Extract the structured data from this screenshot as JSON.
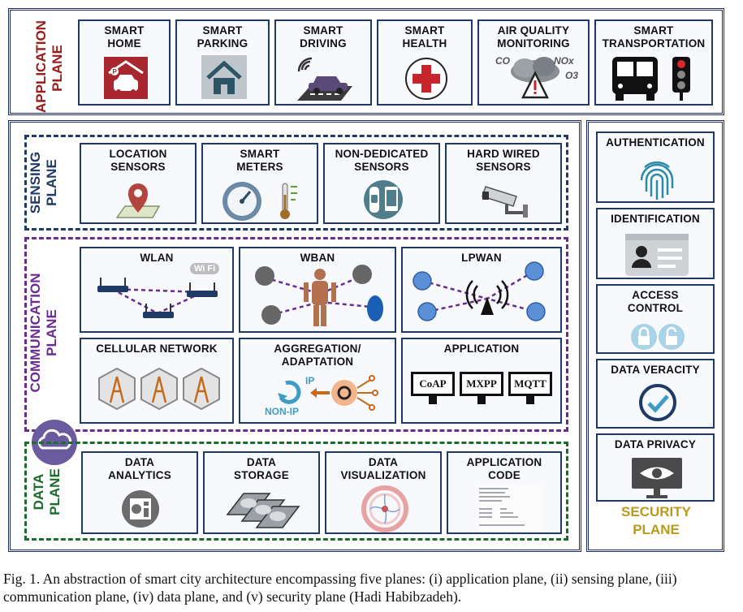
{
  "application_plane": {
    "title": "APPLICATION\nPLANE",
    "items": [
      {
        "label": "SMART\nHOME",
        "icon": "smart-home-icon"
      },
      {
        "label": "SMART\nPARKING",
        "icon": "house-icon"
      },
      {
        "label": "SMART\nDRIVING",
        "icon": "connected-car-icon"
      },
      {
        "label": "SMART\nHEALTH",
        "icon": "red-cross-icon"
      },
      {
        "label": "AIR QUALITY\nMONITORING",
        "icon": "pollution-cloud-icon",
        "gas_labels": [
          "CO",
          "NOx",
          "O3"
        ]
      },
      {
        "label": "SMART\nTRANSPORTATION",
        "icon": "bus-traffic-light-icon"
      }
    ]
  },
  "sensing_plane": {
    "title": "SENSING\nPLANE",
    "items": [
      {
        "label": "LOCATION\nSENSORS",
        "icon": "map-pin-icon"
      },
      {
        "label": "SMART\nMETERS",
        "icon": "gauge-thermometer-icon"
      },
      {
        "label": "NON-DEDICATED\nSENSORS",
        "icon": "wearable-phone-icon"
      },
      {
        "label": "HARD WIRED\nSENSORS",
        "icon": "cctv-camera-icon"
      }
    ]
  },
  "communication_plane": {
    "title": "COMMUNICATION\nPLANE",
    "items": [
      {
        "label": "WLAN",
        "icon": "wifi-router-network-icon",
        "badge": "Wi Fi"
      },
      {
        "label": "WBAN",
        "icon": "body-network-icon"
      },
      {
        "label": "LPWAN",
        "icon": "antenna-network-icon"
      },
      {
        "label": "CELLULAR NETWORK",
        "icon": "cell-tower-icon"
      },
      {
        "label": "AGGREGATION/\nADAPTATION",
        "icon": "gear-adapter-icon",
        "ip_label": "IP",
        "nonip_label": "NON-IP"
      },
      {
        "label": "APPLICATION",
        "icon": "protocol-monitors-icon",
        "protocols": [
          "CoAP",
          "MXPP",
          "MQTT"
        ]
      }
    ]
  },
  "data_plane": {
    "title": "DATA\nPLANE",
    "items": [
      {
        "label": "DATA\nANALYTICS",
        "icon": "analytics-icon"
      },
      {
        "label": "DATA\nSTORAGE",
        "icon": "hard-drives-icon"
      },
      {
        "label": "DATA\nVISUALIZATION",
        "icon": "chord-chart-icon"
      },
      {
        "label": "APPLICATION\nCODE",
        "icon": "code-listing-icon"
      }
    ]
  },
  "security_plane": {
    "title": "SECURITY\nPLANE",
    "items": [
      {
        "label": "AUTHENTICATION",
        "icon": "fingerprint-icon"
      },
      {
        "label": "IDENTIFICATION",
        "icon": "id-card-icon"
      },
      {
        "label": "ACCESS\nCONTROL",
        "icon": "padlocks-icon"
      },
      {
        "label": "DATA VERACITY",
        "icon": "check-circle-icon"
      },
      {
        "label": "DATA PRIVACY",
        "icon": "eye-monitor-icon"
      }
    ]
  },
  "caption": "Fig. 1.  An abstraction of smart city architecture encompassing five planes: (i) application plane, (ii) sensing plane, (iii) communication plane, (iv) data plane, and (v) security plane (Hadi Habibzadeh).",
  "colors": {
    "frame": "#1b2a6b",
    "application": "#9b1b1b",
    "sensing": "#1f3a66",
    "communication": "#6a2c91",
    "data": "#1e6b2e",
    "security": "#b99a1c"
  }
}
